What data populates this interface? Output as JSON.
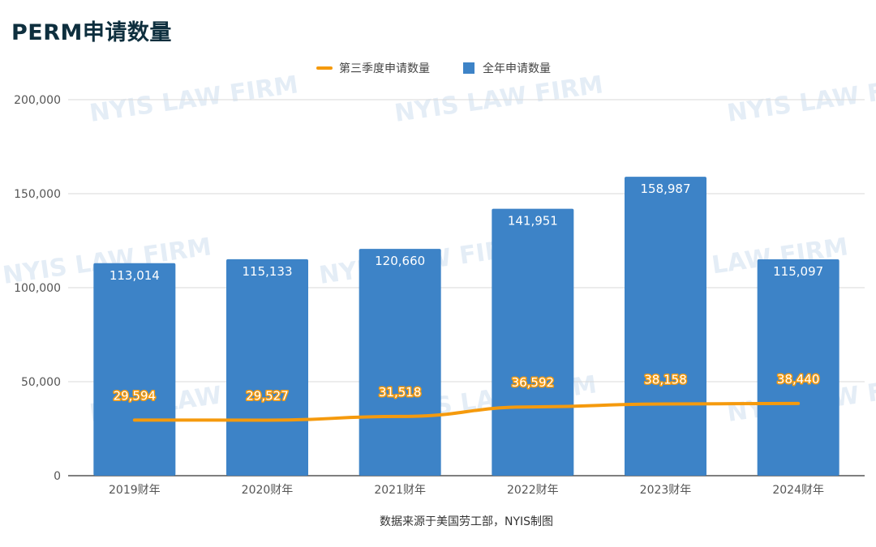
{
  "title": "PERM申请数量",
  "watermark_text": "NYIS LAW FIRM",
  "source": "数据来源于美国劳工部，NYIS制图",
  "colors": {
    "bar": "#3d83c7",
    "line": "#f59a0d",
    "grid": "#d9d9d9",
    "axis": "#555555",
    "title": "#0e2f3e"
  },
  "chart_data": {
    "type": "bar",
    "categories": [
      "2019财年",
      "2020财年",
      "2021财年",
      "2022财年",
      "2023财年",
      "2024财年"
    ],
    "series": [
      {
        "name": "全年申请数量",
        "type": "bar",
        "values": [
          113014,
          115133,
          120660,
          141951,
          158987,
          115097
        ],
        "labels": [
          "113,014",
          "115,133",
          "120,660",
          "141,951",
          "158,987",
          "115,097"
        ]
      },
      {
        "name": "第三季度申请数量",
        "type": "line",
        "values": [
          29594,
          29527,
          31518,
          36592,
          38158,
          38440
        ],
        "labels": [
          "29,594",
          "29,527",
          "31,518",
          "36,592",
          "38,158",
          "38,440"
        ]
      }
    ],
    "y_ticks": [
      0,
      50000,
      100000,
      150000,
      200000
    ],
    "y_tick_labels": [
      "0",
      "50,000",
      "100,000",
      "150,000",
      "200,000"
    ],
    "ylim": [
      0,
      200000
    ],
    "grid": true,
    "legend_position": "top-center"
  }
}
